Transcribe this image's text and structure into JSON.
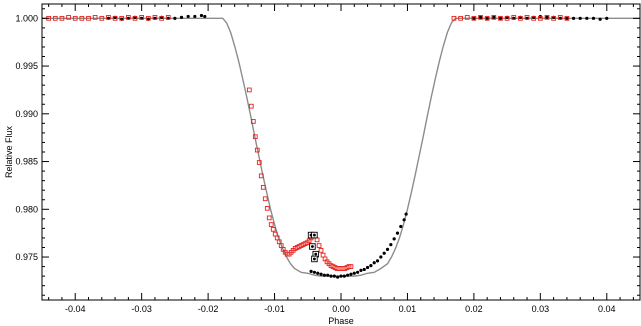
{
  "chart_data": {
    "type": "scatter",
    "title": "",
    "xlabel": "Phase",
    "ylabel": "Relative Flux",
    "xlim": [
      -0.045,
      0.045
    ],
    "ylim": [
      0.9705,
      1.0015
    ],
    "xticks": [
      -0.04,
      -0.03,
      -0.02,
      -0.01,
      0.0,
      0.01,
      0.02,
      0.03,
      0.04
    ],
    "xtick_labels": [
      "-0.04",
      "-0.03",
      "-0.02",
      "-0.01",
      "0.00",
      "0.01",
      "0.02",
      "0.03",
      "0.04"
    ],
    "yticks": [
      0.975,
      0.98,
      0.985,
      0.99,
      0.995,
      1.0
    ],
    "ytick_labels": [
      "0.975",
      "0.980",
      "0.985",
      "0.990",
      "0.995",
      "1.000"
    ],
    "grid": false,
    "legend": "none",
    "series": [
      {
        "kind": "line",
        "color": "#8c8c8c",
        "points": [
          [
            -0.045,
            1.0
          ],
          [
            -0.0178,
            1.0
          ],
          [
            -0.0172,
            0.9995
          ],
          [
            -0.0166,
            0.9985
          ],
          [
            -0.016,
            0.9971
          ],
          [
            -0.0154,
            0.9955
          ],
          [
            -0.0148,
            0.9937
          ],
          [
            -0.0142,
            0.9918
          ],
          [
            -0.0136,
            0.9898
          ],
          [
            -0.013,
            0.9877
          ],
          [
            -0.0124,
            0.9857
          ],
          [
            -0.0118,
            0.9837
          ],
          [
            -0.0112,
            0.9818
          ],
          [
            -0.0106,
            0.98
          ],
          [
            -0.01,
            0.9784
          ],
          [
            -0.0094,
            0.977
          ],
          [
            -0.0088,
            0.9759
          ],
          [
            -0.0082,
            0.975
          ],
          [
            -0.0076,
            0.9743
          ],
          [
            -0.007,
            0.9738
          ],
          [
            -0.006,
            0.9734
          ],
          [
            -0.005,
            0.9733
          ],
          [
            -0.004,
            0.9731
          ],
          [
            -0.003,
            0.973
          ],
          [
            -0.002,
            0.973
          ],
          [
            -0.001,
            0.973
          ],
          [
            0.0,
            0.973
          ],
          [
            0.001,
            0.973
          ],
          [
            0.002,
            0.973
          ],
          [
            0.003,
            0.9731
          ],
          [
            0.004,
            0.9733
          ],
          [
            0.005,
            0.9734
          ],
          [
            0.006,
            0.9738
          ],
          [
            0.007,
            0.9743
          ],
          [
            0.0076,
            0.975
          ],
          [
            0.0082,
            0.9759
          ],
          [
            0.0088,
            0.977
          ],
          [
            0.0094,
            0.9784
          ],
          [
            0.01,
            0.98
          ],
          [
            0.0106,
            0.9818
          ],
          [
            0.0112,
            0.9837
          ],
          [
            0.0118,
            0.9857
          ],
          [
            0.0124,
            0.9877
          ],
          [
            0.013,
            0.9898
          ],
          [
            0.0136,
            0.9918
          ],
          [
            0.0142,
            0.9937
          ],
          [
            0.0148,
            0.9955
          ],
          [
            0.0154,
            0.9971
          ],
          [
            0.016,
            0.9985
          ],
          [
            0.0166,
            0.9995
          ],
          [
            0.0172,
            1.0
          ],
          [
            0.045,
            1.0
          ]
        ]
      },
      {
        "kind": "points",
        "marker": "dot",
        "color": "#000000",
        "points": [
          [
            -0.035,
            1.0
          ],
          [
            -0.034,
            1.0001
          ],
          [
            -0.033,
            0.9999
          ],
          [
            -0.032,
            1.0
          ],
          [
            -0.031,
            1.0001
          ],
          [
            -0.03,
            1.0
          ],
          [
            -0.029,
            0.9999
          ],
          [
            -0.028,
            1.0
          ],
          [
            -0.027,
            1.0001
          ],
          [
            -0.026,
            1.0
          ],
          [
            -0.025,
            1.0
          ],
          [
            -0.024,
            1.0001
          ],
          [
            -0.023,
            1.0002
          ],
          [
            -0.022,
            1.0002
          ],
          [
            -0.021,
            1.0003
          ],
          [
            -0.0205,
            1.0002
          ],
          [
            -0.0045,
            0.9735
          ],
          [
            -0.004,
            0.9734
          ],
          [
            -0.0035,
            0.9733
          ],
          [
            -0.003,
            0.9732
          ],
          [
            -0.0025,
            0.9731
          ],
          [
            -0.002,
            0.9731
          ],
          [
            -0.0015,
            0.973
          ],
          [
            -0.001,
            0.973
          ],
          [
            -0.0005,
            0.9729
          ],
          [
            0.0,
            0.973
          ],
          [
            0.0005,
            0.973
          ],
          [
            0.001,
            0.9731
          ],
          [
            0.0015,
            0.9732
          ],
          [
            0.002,
            0.9733
          ],
          [
            0.0025,
            0.9734
          ],
          [
            0.003,
            0.9736
          ],
          [
            0.0035,
            0.9737
          ],
          [
            0.004,
            0.9739
          ],
          [
            0.0045,
            0.9741
          ],
          [
            0.005,
            0.9744
          ],
          [
            0.0055,
            0.9746
          ],
          [
            0.006,
            0.975
          ],
          [
            0.0065,
            0.9754
          ],
          [
            0.007,
            0.9758
          ],
          [
            0.0075,
            0.9763
          ],
          [
            0.008,
            0.9769
          ],
          [
            0.0085,
            0.9775
          ],
          [
            0.009,
            0.9782
          ],
          [
            0.0095,
            0.9789
          ],
          [
            0.0098,
            0.9795
          ],
          [
            0.02,
            1.0
          ],
          [
            0.021,
            1.0001
          ],
          [
            0.022,
            1.0
          ],
          [
            0.023,
            1.0001
          ],
          [
            0.024,
            1.0
          ],
          [
            0.025,
            1.0001
          ],
          [
            0.026,
            1.0
          ],
          [
            0.027,
            1.0001
          ],
          [
            0.028,
            1.0
          ],
          [
            0.029,
            1.0001
          ],
          [
            0.03,
            1.0002
          ],
          [
            0.031,
            1.0001
          ],
          [
            0.032,
            1.0001
          ],
          [
            0.033,
            1.0
          ],
          [
            0.034,
            1.0
          ],
          [
            0.035,
            1.0
          ],
          [
            0.036,
            1.0
          ],
          [
            0.037,
            1.0
          ],
          [
            0.038,
            1.0
          ],
          [
            0.039,
            0.9999
          ],
          [
            0.04,
            1.0
          ]
        ]
      },
      {
        "kind": "points",
        "marker": "open-square",
        "color": "#e8211c",
        "points": [
          [
            -0.044,
            1.0
          ],
          [
            -0.043,
            1.0
          ],
          [
            -0.042,
            1.0
          ],
          [
            -0.041,
            1.0001
          ],
          [
            -0.04,
            1.0
          ],
          [
            -0.039,
            1.0
          ],
          [
            -0.038,
            1.0
          ],
          [
            -0.037,
            1.0001
          ],
          [
            -0.036,
            1.0
          ],
          [
            -0.035,
            1.0001
          ],
          [
            -0.034,
            1.0
          ],
          [
            -0.033,
            1.0
          ],
          [
            -0.032,
            1.0001
          ],
          [
            -0.031,
            1.0
          ],
          [
            -0.03,
            1.0001
          ],
          [
            -0.029,
            1.0
          ],
          [
            -0.028,
            1.0001
          ],
          [
            -0.027,
            1.0
          ],
          [
            -0.026,
            1.0001
          ],
          [
            -0.0138,
            0.9925
          ],
          [
            -0.0135,
            0.9908
          ],
          [
            -0.0132,
            0.9892
          ],
          [
            -0.0129,
            0.9876
          ],
          [
            -0.0126,
            0.9862
          ],
          [
            -0.0123,
            0.9849
          ],
          [
            -0.012,
            0.9835
          ],
          [
            -0.0117,
            0.9823
          ],
          [
            -0.0114,
            0.9811
          ],
          [
            -0.0111,
            0.9801
          ],
          [
            -0.0108,
            0.9791
          ],
          [
            -0.0105,
            0.9784
          ],
          [
            -0.0102,
            0.9779
          ],
          [
            -0.0099,
            0.9774
          ],
          [
            -0.0096,
            0.977
          ],
          [
            -0.0093,
            0.9766
          ],
          [
            -0.009,
            0.9762
          ],
          [
            -0.0087,
            0.9758
          ],
          [
            -0.0084,
            0.9755
          ],
          [
            -0.0081,
            0.9753
          ],
          [
            -0.0078,
            0.9753
          ],
          [
            -0.0075,
            0.9755
          ],
          [
            -0.0072,
            0.9757
          ],
          [
            -0.0069,
            0.9759
          ],
          [
            -0.0066,
            0.976
          ],
          [
            -0.0063,
            0.9761
          ],
          [
            -0.006,
            0.9762
          ],
          [
            -0.0057,
            0.9763
          ],
          [
            -0.0054,
            0.9764
          ],
          [
            -0.0051,
            0.9765
          ],
          [
            -0.0048,
            0.9767
          ],
          [
            -0.0045,
            0.977
          ],
          [
            -0.0042,
            0.9772
          ],
          [
            -0.0039,
            0.9772
          ],
          [
            -0.0036,
            0.9768
          ],
          [
            -0.0033,
            0.9762
          ],
          [
            -0.003,
            0.9757
          ],
          [
            -0.0027,
            0.9752
          ],
          [
            -0.0024,
            0.9748
          ],
          [
            -0.0021,
            0.9745
          ],
          [
            -0.0018,
            0.9743
          ],
          [
            -0.0015,
            0.9741
          ],
          [
            -0.0012,
            0.974
          ],
          [
            -0.0009,
            0.9739
          ],
          [
            -0.0006,
            0.9738
          ],
          [
            -0.0003,
            0.9738
          ],
          [
            0.0,
            0.9738
          ],
          [
            0.0003,
            0.9738
          ],
          [
            0.0006,
            0.9738
          ],
          [
            0.0009,
            0.9739
          ],
          [
            0.0012,
            0.974
          ],
          [
            0.0015,
            0.974
          ],
          [
            0.017,
            1.0
          ],
          [
            0.018,
            1.0
          ],
          [
            0.019,
            1.0001
          ],
          [
            0.02,
            1.0
          ],
          [
            0.021,
            1.0001
          ],
          [
            0.022,
            1.0
          ],
          [
            0.023,
            1.0001
          ],
          [
            0.024,
            1.0
          ],
          [
            0.025,
            1.0
          ],
          [
            0.026,
            1.0001
          ],
          [
            0.027,
            1.0
          ],
          [
            0.028,
            1.0001
          ],
          [
            0.029,
            1.0
          ],
          [
            0.03,
            1.0
          ],
          [
            0.031,
            1.0001
          ],
          [
            0.032,
            1.0
          ],
          [
            0.033,
            1.0001
          ],
          [
            0.034,
            1.0
          ]
        ]
      },
      {
        "kind": "points",
        "marker": "boxed-circle",
        "color": "#000000",
        "points": [
          [
            -0.0045,
            0.9773
          ],
          [
            -0.004,
            0.9773
          ],
          [
            -0.0043,
            0.9761
          ],
          [
            -0.0038,
            0.9753
          ],
          [
            -0.004,
            0.9748
          ]
        ]
      }
    ]
  }
}
